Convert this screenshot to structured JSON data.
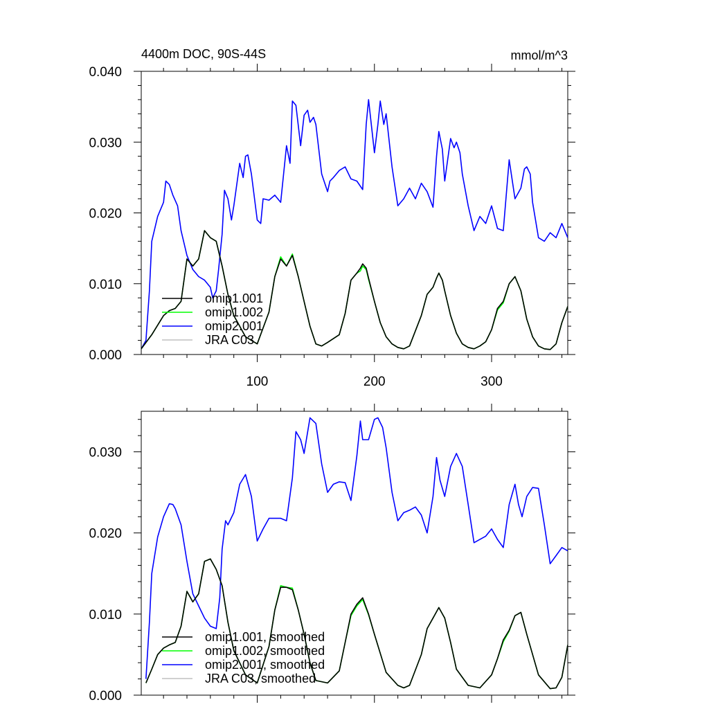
{
  "chart_data": [
    {
      "type": "line",
      "title": "4400m DOC, 90S-44S",
      "units": "mmol/m^3",
      "xlim": [
        1,
        365
      ],
      "ylim": [
        0,
        0.04
      ],
      "xticks": [
        100,
        200,
        300
      ],
      "xtick_labels": [
        "100",
        "200",
        "300"
      ],
      "yticks": [
        0,
        0.01,
        0.02,
        0.03,
        0.04
      ],
      "ytick_labels": [
        "0.000",
        "0.010",
        "0.020",
        "0.030",
        "0.040"
      ],
      "grid": false,
      "legend_position": "bottom-left",
      "series": [
        {
          "name": "omip1.001",
          "color": "#000000",
          "x": [
            1,
            10,
            20,
            25,
            30,
            35,
            40,
            45,
            50,
            55,
            60,
            65,
            70,
            75,
            80,
            90,
            100,
            110,
            115,
            120,
            125,
            130,
            135,
            140,
            145,
            150,
            155,
            160,
            170,
            175,
            180,
            185,
            188,
            190,
            193,
            195,
            200,
            205,
            210,
            215,
            220,
            225,
            230,
            240,
            245,
            250,
            253,
            255,
            258,
            260,
            265,
            270,
            275,
            280,
            285,
            290,
            295,
            300,
            305,
            310,
            315,
            320,
            325,
            330,
            335,
            340,
            345,
            350,
            355,
            360,
            365
          ],
          "y": [
            0.0008,
            0.0028,
            0.0055,
            0.0062,
            0.0065,
            0.0075,
            0.0135,
            0.0125,
            0.0135,
            0.0175,
            0.0165,
            0.016,
            0.0125,
            0.0085,
            0.0055,
            0.0025,
            0.0015,
            0.006,
            0.011,
            0.0135,
            0.0125,
            0.014,
            0.011,
            0.0075,
            0.004,
            0.0015,
            0.0012,
            0.0017,
            0.0028,
            0.0058,
            0.0105,
            0.0115,
            0.0122,
            0.0128,
            0.0122,
            0.0108,
            0.0075,
            0.0045,
            0.0025,
            0.0015,
            0.001,
            0.0008,
            0.0012,
            0.0055,
            0.0085,
            0.0095,
            0.0108,
            0.0115,
            0.0105,
            0.009,
            0.0055,
            0.003,
            0.0015,
            0.001,
            0.0008,
            0.0012,
            0.0018,
            0.0035,
            0.0065,
            0.0075,
            0.01,
            0.011,
            0.009,
            0.005,
            0.0025,
            0.0012,
            0.0008,
            0.0007,
            0.0015,
            0.0045,
            0.0068
          ]
        },
        {
          "name": "omip1.002",
          "color": "#00ff00",
          "x": [
            1,
            10,
            20,
            25,
            30,
            35,
            40,
            45,
            50,
            55,
            60,
            65,
            70,
            75,
            80,
            90,
            100,
            110,
            115,
            120,
            125,
            130,
            135,
            140,
            145,
            150,
            155,
            160,
            170,
            175,
            180,
            185,
            188,
            190,
            193,
            195,
            200,
            205,
            210,
            215,
            220,
            225,
            230,
            240,
            245,
            250,
            253,
            255,
            258,
            260,
            265,
            270,
            275,
            280,
            285,
            290,
            295,
            300,
            305,
            310,
            315,
            320,
            325,
            330,
            335,
            340,
            345,
            350,
            355,
            360,
            365
          ],
          "y": [
            0.0008,
            0.0028,
            0.0055,
            0.0062,
            0.0065,
            0.0075,
            0.0135,
            0.0125,
            0.0135,
            0.0175,
            0.0165,
            0.016,
            0.0125,
            0.0085,
            0.0055,
            0.0025,
            0.0015,
            0.006,
            0.011,
            0.0138,
            0.0125,
            0.0142,
            0.011,
            0.0075,
            0.004,
            0.0015,
            0.0012,
            0.0017,
            0.0028,
            0.0058,
            0.0105,
            0.0115,
            0.0118,
            0.0125,
            0.012,
            0.0106,
            0.0075,
            0.0045,
            0.0025,
            0.0015,
            0.001,
            0.0008,
            0.0012,
            0.0055,
            0.0085,
            0.0095,
            0.0108,
            0.0115,
            0.0105,
            0.009,
            0.0055,
            0.003,
            0.0015,
            0.001,
            0.0008,
            0.0012,
            0.0018,
            0.0035,
            0.0063,
            0.0073,
            0.01,
            0.011,
            0.009,
            0.005,
            0.0025,
            0.0012,
            0.0008,
            0.0007,
            0.0015,
            0.0045,
            0.0068
          ]
        },
        {
          "name": "omip2.001",
          "color": "#0000ff",
          "x": [
            1,
            5,
            8,
            10,
            15,
            20,
            22,
            25,
            28,
            32,
            35,
            40,
            45,
            50,
            55,
            60,
            62,
            65,
            67,
            70,
            72,
            75,
            78,
            80,
            85,
            88,
            90,
            92,
            95,
            100,
            103,
            105,
            110,
            115,
            120,
            125,
            128,
            130,
            133,
            137,
            140,
            143,
            145,
            148,
            150,
            155,
            160,
            162,
            165,
            170,
            175,
            180,
            185,
            190,
            193,
            195,
            198,
            200,
            203,
            205,
            208,
            210,
            215,
            220,
            225,
            230,
            235,
            240,
            245,
            250,
            253,
            255,
            258,
            260,
            265,
            268,
            270,
            273,
            275,
            280,
            285,
            290,
            295,
            300,
            305,
            310,
            315,
            320,
            325,
            328,
            330,
            333,
            335,
            340,
            345,
            350,
            355,
            360,
            365
          ],
          "y": [
            0.0008,
            0.002,
            0.009,
            0.016,
            0.0195,
            0.0215,
            0.0245,
            0.024,
            0.0225,
            0.021,
            0.0175,
            0.014,
            0.012,
            0.011,
            0.0105,
            0.0095,
            0.008,
            0.009,
            0.012,
            0.017,
            0.0232,
            0.022,
            0.019,
            0.021,
            0.027,
            0.025,
            0.028,
            0.0282,
            0.0255,
            0.019,
            0.0185,
            0.022,
            0.0218,
            0.0225,
            0.0215,
            0.0295,
            0.027,
            0.0358,
            0.0352,
            0.0295,
            0.0338,
            0.0345,
            0.0328,
            0.0335,
            0.0325,
            0.0255,
            0.023,
            0.0245,
            0.025,
            0.026,
            0.0265,
            0.0248,
            0.0245,
            0.0233,
            0.0325,
            0.036,
            0.0315,
            0.0285,
            0.0325,
            0.0358,
            0.0325,
            0.034,
            0.0265,
            0.021,
            0.022,
            0.0235,
            0.022,
            0.0242,
            0.023,
            0.0208,
            0.028,
            0.0315,
            0.029,
            0.0245,
            0.0305,
            0.0292,
            0.03,
            0.0285,
            0.0255,
            0.021,
            0.0175,
            0.0195,
            0.0185,
            0.021,
            0.0178,
            0.0175,
            0.0275,
            0.022,
            0.0235,
            0.0262,
            0.0265,
            0.0255,
            0.0215,
            0.0165,
            0.016,
            0.0172,
            0.0165,
            0.0185,
            0.0165
          ]
        },
        {
          "name": "JRA C03",
          "color": "#c0c0c0",
          "x": [],
          "y": []
        }
      ]
    },
    {
      "type": "line",
      "title": "",
      "xlim": [
        1,
        365
      ],
      "ylim": [
        0,
        0.035
      ],
      "xticks": [
        100,
        200,
        300
      ],
      "xtick_labels": [
        "",
        "",
        ""
      ],
      "yticks": [
        0,
        0.01,
        0.02,
        0.03
      ],
      "ytick_labels": [
        "0.000",
        "0.010",
        "0.020",
        "0.030"
      ],
      "grid": false,
      "legend_position": "bottom-left",
      "series": [
        {
          "name": "omip1.001, smoothed",
          "color": "#000000",
          "x": [
            5,
            10,
            15,
            20,
            25,
            30,
            35,
            40,
            45,
            50,
            55,
            60,
            65,
            70,
            75,
            80,
            90,
            100,
            110,
            115,
            120,
            125,
            130,
            135,
            140,
            145,
            150,
            160,
            170,
            175,
            180,
            185,
            190,
            195,
            200,
            210,
            220,
            225,
            230,
            240,
            245,
            250,
            255,
            260,
            265,
            270,
            280,
            290,
            300,
            305,
            310,
            315,
            320,
            325,
            330,
            340,
            350,
            355,
            360,
            365
          ],
          "y": [
            0.0015,
            0.0032,
            0.005,
            0.0058,
            0.0062,
            0.0065,
            0.0085,
            0.0128,
            0.0115,
            0.0125,
            0.0165,
            0.0168,
            0.0155,
            0.0135,
            0.009,
            0.0055,
            0.0025,
            0.0015,
            0.006,
            0.0105,
            0.0133,
            0.0133,
            0.013,
            0.0105,
            0.0075,
            0.004,
            0.0018,
            0.0015,
            0.003,
            0.0065,
            0.01,
            0.0112,
            0.012,
            0.01,
            0.0075,
            0.0028,
            0.0012,
            0.0009,
            0.0012,
            0.005,
            0.0082,
            0.0095,
            0.0108,
            0.0095,
            0.0065,
            0.0032,
            0.0012,
            0.0009,
            0.0025,
            0.0045,
            0.0068,
            0.008,
            0.0098,
            0.0102,
            0.0075,
            0.0025,
            0.0008,
            0.0009,
            0.0022,
            0.0062
          ]
        },
        {
          "name": "omip1.002, smoothed",
          "color": "#00ff00",
          "x": [
            5,
            10,
            15,
            20,
            25,
            30,
            35,
            40,
            45,
            50,
            55,
            60,
            65,
            70,
            75,
            80,
            90,
            100,
            110,
            115,
            120,
            125,
            130,
            135,
            140,
            145,
            150,
            160,
            170,
            175,
            180,
            185,
            190,
            195,
            200,
            210,
            220,
            225,
            230,
            240,
            245,
            250,
            255,
            260,
            265,
            270,
            280,
            290,
            300,
            305,
            310,
            315,
            320,
            325,
            330,
            340,
            350,
            355,
            360,
            365
          ],
          "y": [
            0.0015,
            0.0032,
            0.005,
            0.0058,
            0.0062,
            0.0065,
            0.0085,
            0.0128,
            0.0115,
            0.0125,
            0.0165,
            0.0168,
            0.0155,
            0.0135,
            0.009,
            0.0055,
            0.0025,
            0.0015,
            0.006,
            0.0105,
            0.0135,
            0.0133,
            0.0132,
            0.0105,
            0.0075,
            0.004,
            0.0018,
            0.0015,
            0.003,
            0.0065,
            0.0098,
            0.011,
            0.0118,
            0.0099,
            0.0075,
            0.0028,
            0.0012,
            0.0009,
            0.0012,
            0.005,
            0.0082,
            0.0095,
            0.0108,
            0.0095,
            0.0065,
            0.0032,
            0.0012,
            0.0009,
            0.0025,
            0.0045,
            0.0066,
            0.0079,
            0.0098,
            0.0102,
            0.0075,
            0.0025,
            0.0008,
            0.0009,
            0.0022,
            0.0062
          ]
        },
        {
          "name": "omip2.001, smoothed",
          "color": "#0000ff",
          "x": [
            5,
            8,
            10,
            15,
            20,
            25,
            28,
            30,
            35,
            40,
            45,
            50,
            55,
            60,
            65,
            68,
            70,
            73,
            75,
            80,
            85,
            90,
            95,
            100,
            105,
            110,
            115,
            120,
            125,
            130,
            133,
            137,
            140,
            145,
            150,
            155,
            160,
            165,
            170,
            175,
            180,
            185,
            188,
            190,
            195,
            200,
            203,
            207,
            210,
            215,
            220,
            225,
            230,
            235,
            240,
            245,
            250,
            253,
            256,
            260,
            265,
            270,
            275,
            280,
            285,
            290,
            295,
            300,
            305,
            310,
            315,
            320,
            323,
            326,
            330,
            335,
            340,
            345,
            350,
            355,
            360,
            365
          ],
          "y": [
            0.002,
            0.009,
            0.015,
            0.0195,
            0.022,
            0.0236,
            0.0235,
            0.023,
            0.021,
            0.0165,
            0.0125,
            0.011,
            0.0095,
            0.0085,
            0.0082,
            0.012,
            0.018,
            0.0215,
            0.021,
            0.0225,
            0.026,
            0.0272,
            0.0245,
            0.019,
            0.0205,
            0.0218,
            0.0218,
            0.0218,
            0.0215,
            0.0268,
            0.0325,
            0.0315,
            0.0298,
            0.0342,
            0.0335,
            0.0285,
            0.025,
            0.026,
            0.0263,
            0.0262,
            0.024,
            0.0295,
            0.0338,
            0.0315,
            0.0315,
            0.034,
            0.0342,
            0.033,
            0.0305,
            0.025,
            0.0215,
            0.0225,
            0.0228,
            0.0232,
            0.0222,
            0.02,
            0.0245,
            0.0293,
            0.0265,
            0.0245,
            0.0282,
            0.0298,
            0.0282,
            0.0235,
            0.0188,
            0.0192,
            0.0196,
            0.0205,
            0.0192,
            0.0182,
            0.0235,
            0.026,
            0.0235,
            0.022,
            0.0245,
            0.0256,
            0.0255,
            0.021,
            0.0162,
            0.0172,
            0.0182,
            0.0178
          ]
        },
        {
          "name": "JRA C03, smoothed",
          "color": "#c0c0c0",
          "x": [],
          "y": []
        }
      ]
    }
  ]
}
